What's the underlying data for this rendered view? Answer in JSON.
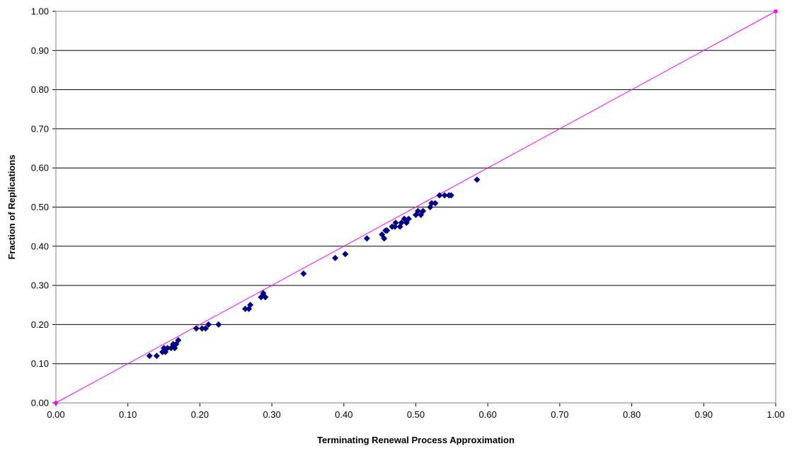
{
  "chart_data": {
    "type": "scatter",
    "title": "",
    "xlabel": "Terminating Renewal Process Approximation",
    "ylabel": "Fraction of Replications",
    "xlim": [
      0,
      1
    ],
    "ylim": [
      0,
      1
    ],
    "x_ticks": [
      "0.00",
      "0.10",
      "0.20",
      "0.30",
      "0.40",
      "0.50",
      "0.60",
      "0.70",
      "0.80",
      "0.90",
      "1.00"
    ],
    "y_ticks": [
      "0.00",
      "0.10",
      "0.20",
      "0.30",
      "0.40",
      "0.50",
      "0.60",
      "0.70",
      "0.80",
      "0.90",
      "1.00"
    ],
    "grid": "horizontal",
    "legend": "none",
    "colors": {
      "points": "#000080",
      "reference_line": "#ff00ff",
      "gridlines": "#000000"
    },
    "series": [
      {
        "marker": "diamond",
        "points": [
          [
            0.13,
            0.12
          ],
          [
            0.14,
            0.12
          ],
          [
            0.148,
            0.13
          ],
          [
            0.15,
            0.14
          ],
          [
            0.152,
            0.13
          ],
          [
            0.155,
            0.14
          ],
          [
            0.16,
            0.14
          ],
          [
            0.163,
            0.15
          ],
          [
            0.165,
            0.14
          ],
          [
            0.167,
            0.15
          ],
          [
            0.17,
            0.16
          ],
          [
            0.195,
            0.19
          ],
          [
            0.203,
            0.19
          ],
          [
            0.208,
            0.19
          ],
          [
            0.212,
            0.2
          ],
          [
            0.226,
            0.2
          ],
          [
            0.263,
            0.24
          ],
          [
            0.268,
            0.24
          ],
          [
            0.27,
            0.25
          ],
          [
            0.285,
            0.27
          ],
          [
            0.288,
            0.28
          ],
          [
            0.291,
            0.27
          ],
          [
            0.344,
            0.33
          ],
          [
            0.388,
            0.37
          ],
          [
            0.402,
            0.38
          ],
          [
            0.432,
            0.42
          ],
          [
            0.453,
            0.43
          ],
          [
            0.456,
            0.42
          ],
          [
            0.458,
            0.44
          ],
          [
            0.46,
            0.44
          ],
          [
            0.467,
            0.45
          ],
          [
            0.471,
            0.45
          ],
          [
            0.472,
            0.46
          ],
          [
            0.478,
            0.45
          ],
          [
            0.48,
            0.46
          ],
          [
            0.484,
            0.47
          ],
          [
            0.487,
            0.46
          ],
          [
            0.49,
            0.47
          ],
          [
            0.5,
            0.48
          ],
          [
            0.503,
            0.49
          ],
          [
            0.507,
            0.48
          ],
          [
            0.51,
            0.49
          ],
          [
            0.52,
            0.5
          ],
          [
            0.522,
            0.51
          ],
          [
            0.527,
            0.51
          ],
          [
            0.533,
            0.53
          ],
          [
            0.54,
            0.53
          ],
          [
            0.546,
            0.53
          ],
          [
            0.549,
            0.53
          ],
          [
            0.585,
            0.57
          ]
        ]
      },
      {
        "type": "line",
        "marker": "square",
        "points": [
          [
            0,
            0
          ],
          [
            1,
            1
          ]
        ]
      }
    ]
  }
}
